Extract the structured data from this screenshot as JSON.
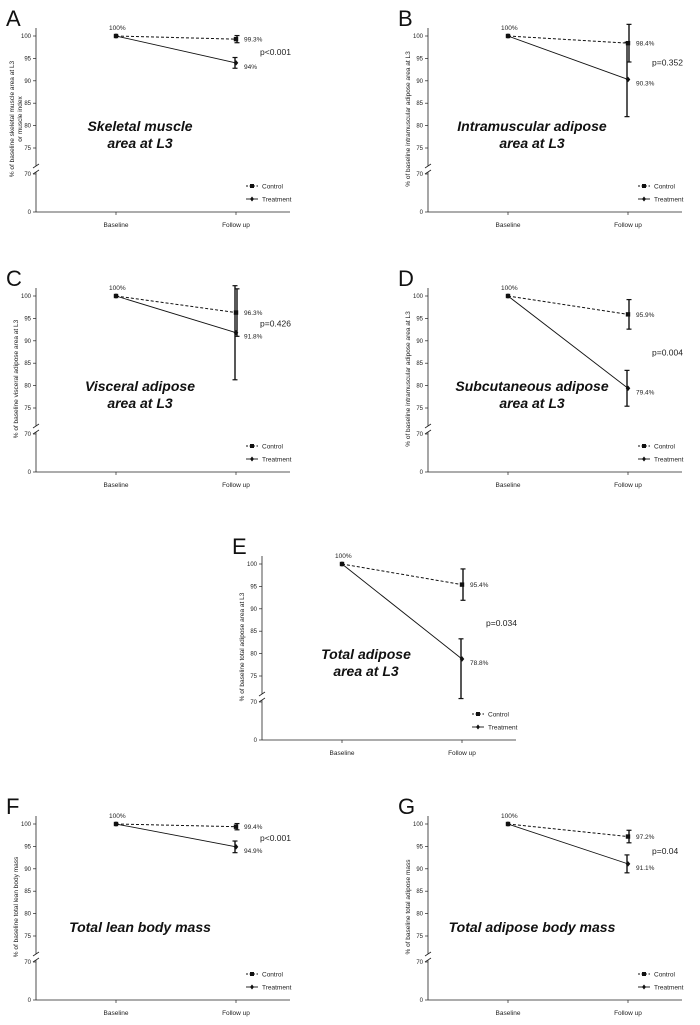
{
  "chart_data": [
    {
      "panel": "A",
      "type": "line",
      "title_lines": [
        "Skeletal muscle",
        "area at L3"
      ],
      "ylabel_lines": [
        "% of baseline skeletal muscle area at L3",
        "or muscle index"
      ],
      "x": [
        "Baseline",
        "Follow up"
      ],
      "yticks": [
        0,
        70,
        75,
        80,
        85,
        90,
        95,
        100
      ],
      "series": [
        {
          "name": "Control",
          "values": [
            100,
            99.3
          ],
          "error": [
            0,
            0.8
          ],
          "labels": [
            "100%",
            "99.3%"
          ]
        },
        {
          "name": "Treatment",
          "values": [
            100,
            94
          ],
          "error": [
            0,
            1.2
          ],
          "labels": [
            "",
            "94%"
          ]
        }
      ],
      "pvalue": "p<0.001",
      "legend": [
        "Control",
        "Treatment"
      ]
    },
    {
      "panel": "B",
      "type": "line",
      "title_lines": [
        "Intramuscular adipose",
        "area at L3"
      ],
      "ylabel_lines": [
        "% of baseline intramuscular adipose area at L3"
      ],
      "x": [
        "Baseline",
        "Follow up"
      ],
      "yticks": [
        0,
        70,
        75,
        80,
        85,
        90,
        95,
        100
      ],
      "series": [
        {
          "name": "Control",
          "values": [
            100,
            98.4
          ],
          "error": [
            0,
            4.2
          ],
          "labels": [
            "100%",
            "98.4%"
          ]
        },
        {
          "name": "Treatment",
          "values": [
            100,
            90.3
          ],
          "error": [
            0,
            8.3
          ],
          "labels": [
            "",
            "90.3%"
          ]
        }
      ],
      "pvalue": "p=0.352",
      "legend": [
        "Control",
        "Treatment"
      ]
    },
    {
      "panel": "C",
      "type": "line",
      "title_lines": [
        "Visceral adipose",
        "area at L3"
      ],
      "ylabel_lines": [
        "% of baseline visceral adipose area at L3"
      ],
      "x": [
        "Baseline",
        "Follow up"
      ],
      "yticks": [
        0,
        70,
        75,
        80,
        85,
        90,
        95,
        100
      ],
      "series": [
        {
          "name": "Control",
          "values": [
            100,
            96.3
          ],
          "error": [
            0,
            5.3
          ],
          "labels": [
            "100%",
            "96.3%"
          ]
        },
        {
          "name": "Treatment",
          "values": [
            100,
            91.8
          ],
          "error": [
            0,
            10.5
          ],
          "labels": [
            "",
            "91.8%"
          ]
        }
      ],
      "pvalue": "p=0.426",
      "legend": [
        "Control",
        "Treatment"
      ]
    },
    {
      "panel": "D",
      "type": "line",
      "title_lines": [
        "Subcutaneous adipose",
        "area at L3"
      ],
      "ylabel_lines": [
        "% of baseline intramuscular adipose area at L3"
      ],
      "x": [
        "Baseline",
        "Follow up"
      ],
      "yticks": [
        0,
        70,
        75,
        80,
        85,
        90,
        95,
        100
      ],
      "series": [
        {
          "name": "Control",
          "values": [
            100,
            95.9
          ],
          "error": [
            0,
            3.3
          ],
          "labels": [
            "100%",
            "95.9%"
          ]
        },
        {
          "name": "Treatment",
          "values": [
            100,
            79.4
          ],
          "error": [
            0,
            4.0
          ],
          "labels": [
            "",
            "79.4%"
          ]
        }
      ],
      "pvalue": "p=0.004",
      "legend": [
        "Control",
        "Treatment"
      ]
    },
    {
      "panel": "E",
      "type": "line",
      "title_lines": [
        "Total adipose",
        "area at L3"
      ],
      "ylabel_lines": [
        "% of baseline total adipose area at L3"
      ],
      "x": [
        "Baseline",
        "Follow up"
      ],
      "yticks": [
        0,
        70,
        75,
        80,
        85,
        90,
        95,
        100
      ],
      "series": [
        {
          "name": "Control",
          "values": [
            100,
            95.4
          ],
          "error": [
            0,
            3.5
          ],
          "labels": [
            "100%",
            "95.4%"
          ]
        },
        {
          "name": "Treatment",
          "values": [
            100,
            78.8
          ],
          "error": [
            0,
            4.5
          ],
          "labels": [
            "",
            "78.8%"
          ]
        }
      ],
      "pvalue": "p=0.034",
      "legend": [
        "Control",
        "Treatment"
      ]
    },
    {
      "panel": "F",
      "type": "line",
      "title_lines": [
        "Total lean body mass"
      ],
      "ylabel_lines": [
        "% of baseline total lean body mass"
      ],
      "x": [
        "Baseline",
        "Follow up"
      ],
      "yticks": [
        0,
        70,
        75,
        80,
        85,
        90,
        95,
        100
      ],
      "series": [
        {
          "name": "Control",
          "values": [
            100,
            99.4
          ],
          "error": [
            0,
            0.7
          ],
          "labels": [
            "100%",
            "99.4%"
          ]
        },
        {
          "name": "Treatment",
          "values": [
            100,
            94.9
          ],
          "error": [
            0,
            1.3
          ],
          "labels": [
            "",
            "94.9%"
          ]
        }
      ],
      "pvalue": "p<0.001",
      "legend": [
        "Control",
        "Treatment"
      ]
    },
    {
      "panel": "G",
      "type": "line",
      "title_lines": [
        "Total adipose body mass"
      ],
      "ylabel_lines": [
        "% of baseline total adipose mass"
      ],
      "x": [
        "Baseline",
        "Follow up"
      ],
      "yticks": [
        0,
        70,
        75,
        80,
        85,
        90,
        95,
        100
      ],
      "series": [
        {
          "name": "Control",
          "values": [
            100,
            97.2
          ],
          "error": [
            0,
            1.4
          ],
          "labels": [
            "100%",
            "97.2%"
          ]
        },
        {
          "name": "Treatment",
          "values": [
            100,
            91.1
          ],
          "error": [
            0,
            2.0
          ],
          "labels": [
            "",
            "91.1%"
          ]
        }
      ],
      "pvalue": "p=0.04",
      "legend": [
        "Control",
        "Treatment"
      ]
    }
  ]
}
